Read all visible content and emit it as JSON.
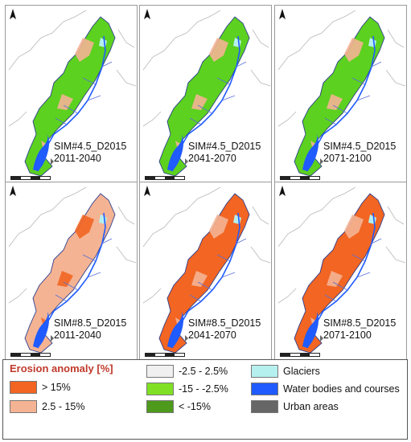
{
  "panels": [
    {
      "scenario": "SIM#4.5_D2015",
      "period": "2011-2040",
      "dominant": "#5cd11f",
      "secondary": "#f4b393"
    },
    {
      "scenario": "SIM#4.5_D2015",
      "period": "2041-2070",
      "dominant": "#5cd11f",
      "secondary": "#f4b393"
    },
    {
      "scenario": "SIM#4.5_D2015",
      "period": "2071-2100",
      "dominant": "#5cd11f",
      "secondary": "#f4b393"
    },
    {
      "scenario": "SIM#8.5_D2015",
      "period": "2011-2040",
      "dominant": "#f4b393",
      "secondary": "#f26522"
    },
    {
      "scenario": "SIM#8.5_D2015",
      "period": "2041-2070",
      "dominant": "#f26522",
      "secondary": "#f4b393"
    },
    {
      "scenario": "SIM#8.5_D2015",
      "period": "2071-2100",
      "dominant": "#f26522",
      "secondary": "#f4b393"
    }
  ],
  "legend": {
    "title": "Erosion anomaly [%]",
    "items": [
      {
        "label": "> 15%",
        "color": "#f26522"
      },
      {
        "label": "2.5 - 15%",
        "color": "#f4b393"
      },
      {
        "label": "-2.5 - 2.5%",
        "color": "#f0f0f0"
      },
      {
        "label": "-15 - -2.5%",
        "color": "#7fe024"
      },
      {
        "label": "< -15%",
        "color": "#4e9a1c"
      },
      {
        "label": "Glaciers",
        "color": "#b6f0ee"
      },
      {
        "label": "Water bodies and courses",
        "color": "#1f5bff"
      },
      {
        "label": "Urban areas",
        "color": "#666666"
      }
    ]
  }
}
